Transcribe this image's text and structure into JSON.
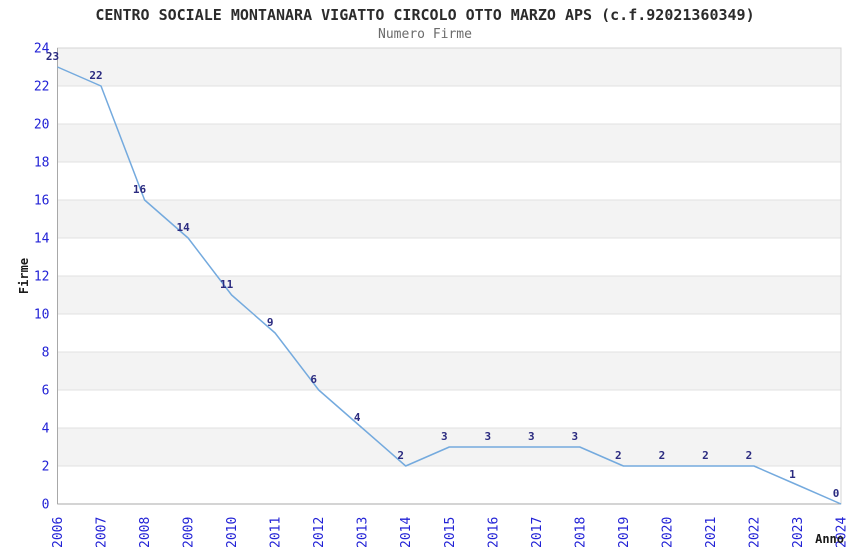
{
  "header": {
    "title": "CENTRO SOCIALE MONTANARA VIGATTO CIRCOLO OTTO MARZO APS (c.f.92021360349)",
    "subtitle": "Numero Firme"
  },
  "chart_data": {
    "type": "line",
    "title": "CENTRO SOCIALE MONTANARA VIGATTO CIRCOLO OTTO MARZO APS (c.f.92021360349)",
    "subtitle": "Numero Firme",
    "xlabel": "Anno",
    "ylabel": "Firme",
    "categories": [
      "2006",
      "2007",
      "2008",
      "2009",
      "2010",
      "2011",
      "2012",
      "2013",
      "2014",
      "2015",
      "2016",
      "2017",
      "2018",
      "2019",
      "2020",
      "2021",
      "2022",
      "2023",
      "2024"
    ],
    "values": [
      23,
      22,
      16,
      14,
      11,
      9,
      6,
      4,
      2,
      3,
      3,
      3,
      3,
      2,
      2,
      2,
      2,
      1,
      0
    ],
    "point_labels_shown": true,
    "ylim": [
      0,
      24
    ],
    "ytick_step": 2,
    "grid": true,
    "legend_position": "none",
    "band_pattern": "alternating-horizontal",
    "colors": {
      "line": "#74aade",
      "tick_label": "#2222d6",
      "point_label": "#2b2b80",
      "band": "#f3f3f3",
      "gridline": "#e0e0e0",
      "plot_border": "#d4d4d4",
      "spine": "#a8a8a8",
      "axis_label": "#1a1a1a",
      "background": "#ffffff"
    }
  }
}
